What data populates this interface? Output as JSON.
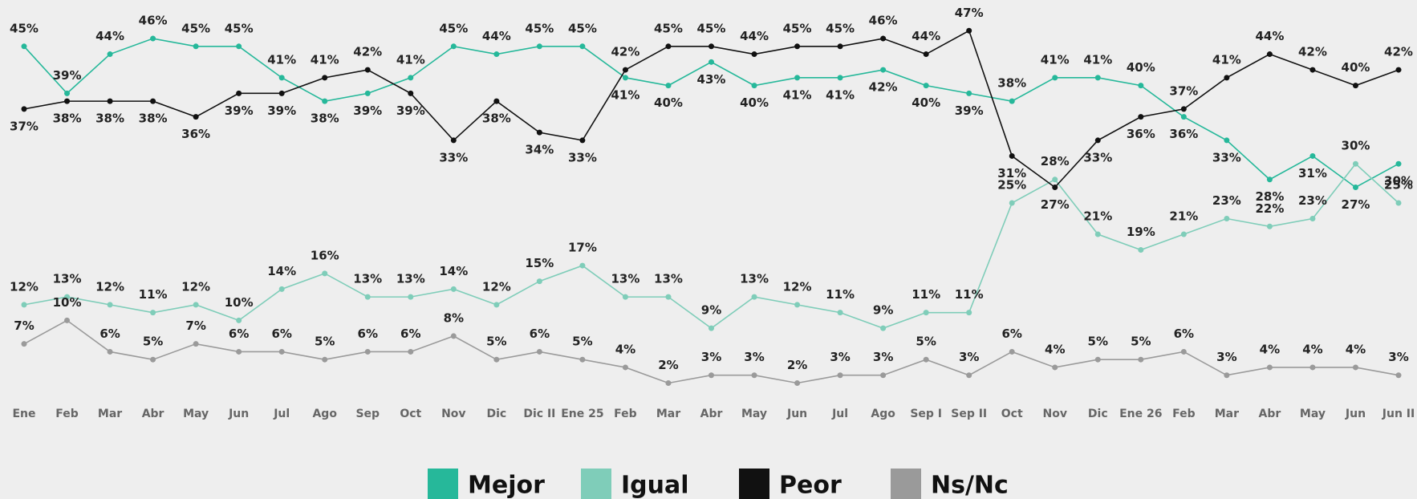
{
  "chart_data": {
    "type": "line",
    "categories": [
      "Ene",
      "Feb",
      "Mar",
      "Abr",
      "May",
      "Jun",
      "Jul",
      "Ago",
      "Sep",
      "Oct",
      "Nov",
      "Dic",
      "Dic II",
      "Ene 25",
      "Feb",
      "Mar",
      "Abr",
      "May",
      "Jun",
      "Jul",
      "Ago",
      "Sep I",
      "Sep II",
      "Oct",
      "Nov",
      "Dic",
      "Ene 26",
      "Feb",
      "Mar",
      "Abr",
      "May",
      "Jun",
      "Jun II"
    ],
    "ylim": [
      0,
      50
    ],
    "legend": "bottom",
    "series": [
      {
        "name": "Mejor",
        "color": "#26b89a",
        "values": [
          45,
          39,
          44,
          46,
          45,
          45,
          41,
          38,
          39,
          41,
          45,
          44,
          45,
          45,
          41,
          40,
          43,
          40,
          41,
          41,
          42,
          40,
          39,
          38,
          41,
          41,
          40,
          36,
          33,
          28,
          31,
          27,
          30
        ],
        "value_labels": [
          "45%",
          "39%",
          "44%",
          "46%",
          "45%",
          "45%",
          "41%",
          "38%",
          "39%",
          "41%",
          "45%",
          "44%",
          "45%",
          "45%",
          "41%",
          "40%",
          "43%",
          "40%",
          "41%",
          "41%",
          "42%",
          "40%",
          "39%",
          "38%",
          "41%",
          "41%",
          "40%",
          "36%",
          "33%",
          "28%",
          "31%",
          "27%",
          "30%"
        ]
      },
      {
        "name": "Igual",
        "color": "#7fcdb9",
        "values": [
          12,
          13,
          12,
          11,
          12,
          10,
          14,
          16,
          13,
          13,
          14,
          12,
          15,
          17,
          13,
          13,
          9,
          13,
          12,
          11,
          9,
          11,
          11,
          25,
          28,
          21,
          19,
          21,
          23,
          22,
          23,
          30,
          25
        ],
        "value_labels": [
          "12%",
          "13%",
          "12%",
          "11%",
          "12%",
          "10%",
          "14%",
          "16%",
          "13%",
          "13%",
          "14%",
          "12%",
          "15%",
          "17%",
          "13%",
          "13%",
          "9%",
          "13%",
          "12%",
          "11%",
          "9%",
          "11%",
          "11%",
          "25%",
          "28%",
          "21%",
          "19%",
          "21%",
          "23%",
          "22%",
          "23%",
          "30%",
          "25%"
        ]
      },
      {
        "name": "Peor",
        "color": "#111111",
        "values": [
          37,
          38,
          38,
          38,
          36,
          39,
          39,
          41,
          42,
          39,
          33,
          38,
          34,
          33,
          42,
          45,
          45,
          44,
          45,
          45,
          46,
          44,
          47,
          31,
          27,
          33,
          36,
          37,
          41,
          44,
          42,
          40,
          42
        ],
        "value_labels": [
          "37%",
          "38%",
          "38%",
          "38%",
          "36%",
          "39%",
          "39%",
          "41%",
          "42%",
          "39%",
          "33%",
          "38%",
          "34%",
          "33%",
          "42%",
          "45%",
          "45%",
          "44%",
          "45%",
          "45%",
          "46%",
          "44%",
          "47%",
          "31%",
          "27%",
          "33%",
          "36%",
          "37%",
          "41%",
          "44%",
          "42%",
          "40%",
          "42%"
        ]
      },
      {
        "name": "Ns/Nc",
        "color": "#9a9a9a",
        "values": [
          7,
          10,
          6,
          5,
          7,
          6,
          6,
          5,
          6,
          6,
          8,
          5,
          6,
          5,
          4,
          2,
          3,
          3,
          2,
          3,
          3,
          5,
          3,
          6,
          4,
          5,
          5,
          6,
          3,
          4,
          4,
          4,
          3
        ],
        "value_labels": [
          "7%",
          "10%",
          "6%",
          "5%",
          "7%",
          "6%",
          "6%",
          "5%",
          "6%",
          "6%",
          "8%",
          "5%",
          "6%",
          "5%",
          "4%",
          "2%",
          "3%",
          "3%",
          "2%",
          "3%",
          "3%",
          "5%",
          "3%",
          "6%",
          "4%",
          "5%",
          "5%",
          "6%",
          "3%",
          "4%",
          "4%",
          "4%",
          "3%"
        ]
      }
    ]
  }
}
